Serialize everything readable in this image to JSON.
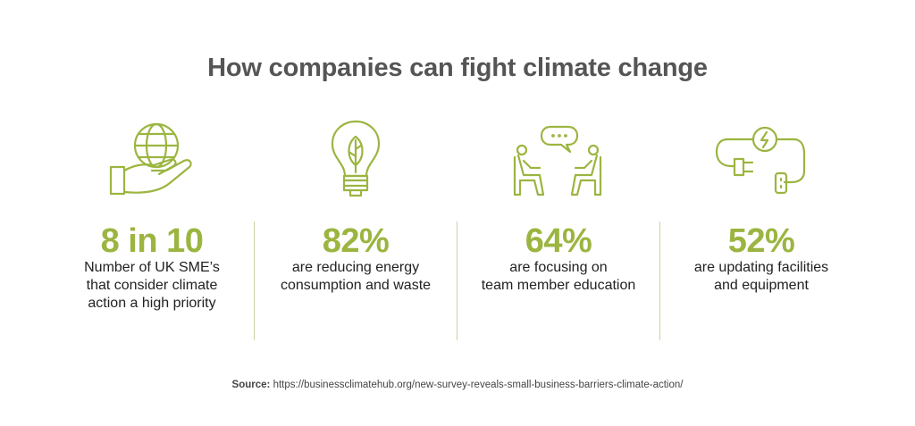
{
  "title": "How companies can fight climate change",
  "accent_color": "#9bb540",
  "stats": [
    {
      "icon": "hand-holding-globe-icon",
      "value": "8 in 10",
      "lines": [
        "Number of UK SME’s",
        "that consider climate",
        "action a high priority"
      ]
    },
    {
      "icon": "lightbulb-leaf-icon",
      "value": "82%",
      "lines": [
        "are reducing energy",
        "consumption and waste"
      ]
    },
    {
      "icon": "conversation-chairs-icon",
      "value": "64%",
      "lines": [
        "are focusing on",
        "team member education"
      ]
    },
    {
      "icon": "plug-socket-energy-icon",
      "value": "52%",
      "lines": [
        "are updating facilities",
        "and equipment"
      ]
    }
  ],
  "source": {
    "label": "Source:",
    "url": "https://businessclimatehub.org/new-survey-reveals-small-business-barriers-climate-action/"
  }
}
